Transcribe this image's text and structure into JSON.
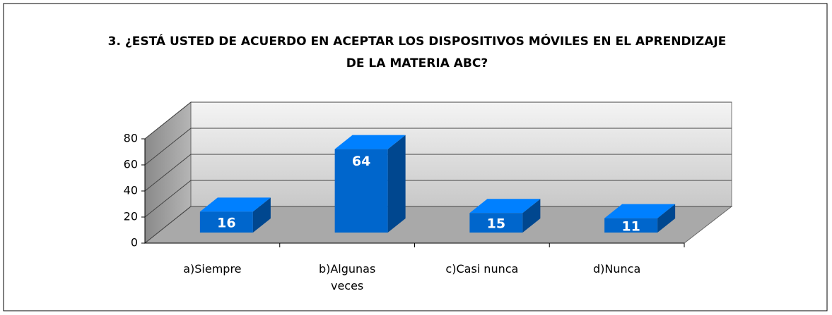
{
  "chart_data": {
    "type": "bar",
    "title": "3. ¿ESTÁ USTED DE ACUERDO EN ACEPTAR LOS DISPOSITIVOS MÓVILES EN EL APRENDIZAJE DE LA MATERIA ABC?",
    "categories": [
      "a)Siempre",
      "b)Algunas veces",
      "c)Casi nunca",
      "d)Nunca"
    ],
    "values": [
      16,
      64,
      15,
      11
    ],
    "color": "#0066cc",
    "ylim": [
      0,
      80
    ],
    "yticks": [
      0,
      20,
      40,
      60,
      80
    ],
    "grid": true
  }
}
